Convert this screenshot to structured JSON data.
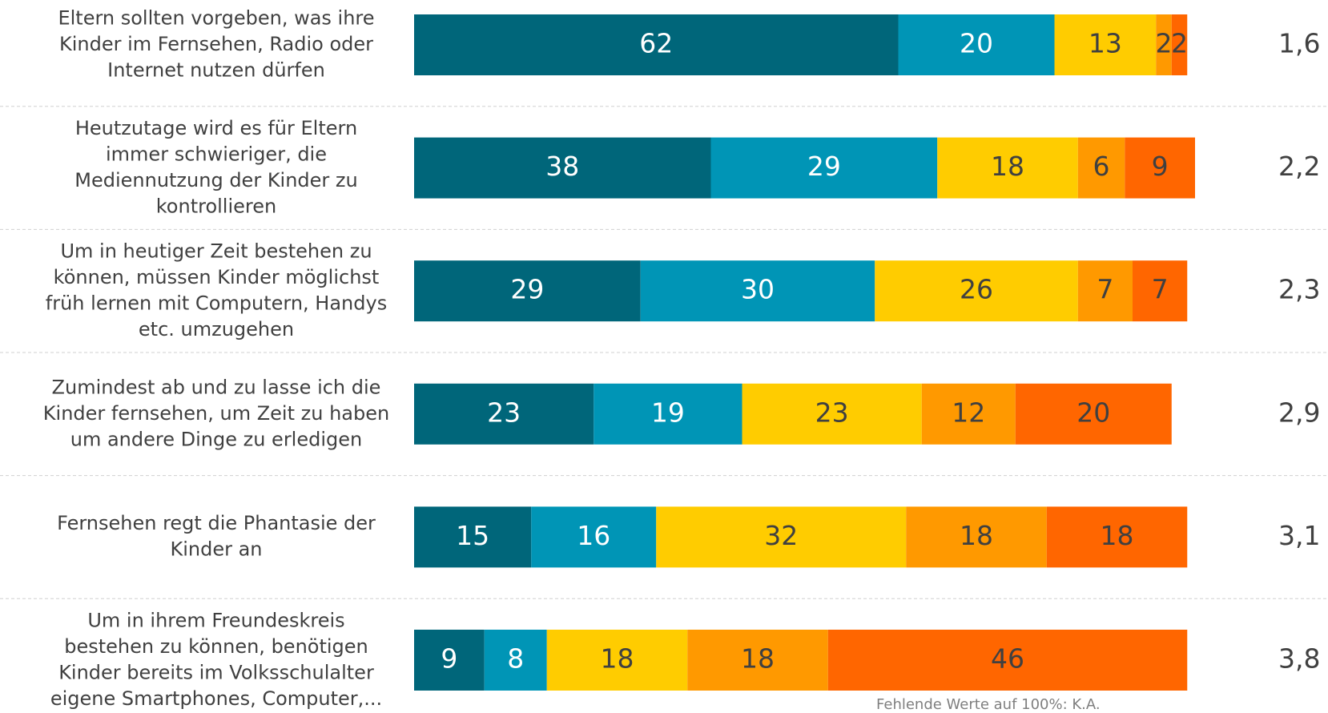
{
  "chart_data": {
    "type": "stacked-barh",
    "categories": [
      [
        "Eltern sollten vorgeben, was ihre",
        "Kinder im Fernsehen, Radio oder",
        "Internet nutzen  dürfen"
      ],
      [
        "Heutzutage wird es für Eltern",
        "immer schwieriger, die",
        "Mediennutzung der Kinder zu",
        "kontrollieren"
      ],
      [
        "Um in  heutiger Zeit bestehen zu",
        "können, müssen Kinder möglichst",
        "früh lernen mit Computern, Handys",
        "etc. umzugehen"
      ],
      [
        "Zumindest ab und zu lasse ich die",
        "Kinder fernsehen, um Zeit zu haben",
        "um andere Dinge zu erledigen"
      ],
      [
        "Fernsehen regt die Phantasie der",
        "Kinder an"
      ],
      [
        "Um in ihrem Freundeskreis",
        "bestehen zu können, benötigen",
        "Kinder bereits im Volksschulalter",
        "eigene Smartphones, Computer,..."
      ]
    ],
    "series": [
      {
        "color": "#00667a",
        "label_color": "#ffffff",
        "values": [
          62,
          38,
          29,
          23,
          15,
          9
        ]
      },
      {
        "color": "#0095b6",
        "label_color": "#ffffff",
        "values": [
          20,
          29,
          30,
          19,
          16,
          8
        ]
      },
      {
        "color": "#ffcc00",
        "label_color": "#404040",
        "values": [
          13,
          18,
          26,
          23,
          32,
          18
        ]
      },
      {
        "color": "#ff9900",
        "label_color": "#404040",
        "values": [
          2,
          6,
          7,
          12,
          18,
          18
        ]
      },
      {
        "color": "#ff6600",
        "label_color": "#404040",
        "values": [
          2,
          9,
          7,
          20,
          18,
          46
        ]
      }
    ],
    "means": {
      "values": [
        1.6,
        2.2,
        2.3,
        2.9,
        3.1,
        3.8
      ],
      "value_labels": [
        "1,6",
        "2,2",
        "2,3",
        "2,9",
        "3,1",
        "3,8"
      ]
    },
    "xlim": [
      0,
      100
    ],
    "note": "Fehlende Werte auf 100%: K.A."
  }
}
